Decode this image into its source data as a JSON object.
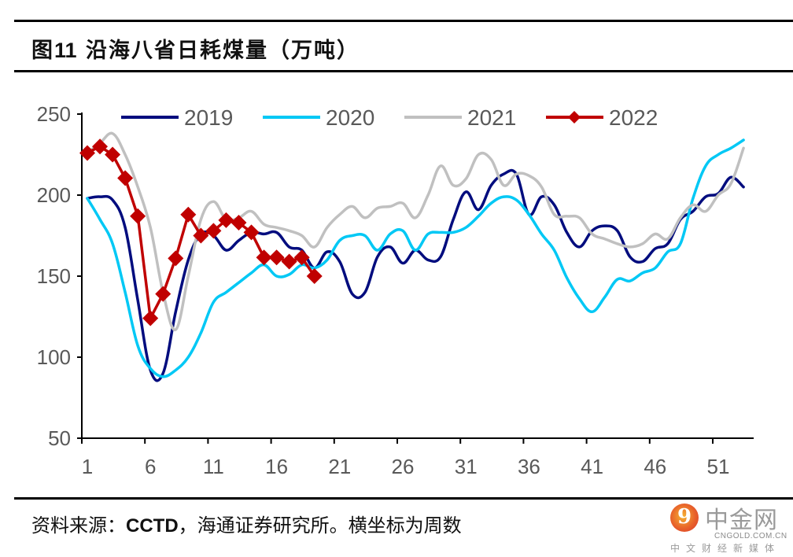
{
  "header": {
    "figure_label": "图",
    "figure_number": "11",
    "title": "沿海八省日耗煤量（万吨）"
  },
  "footer": {
    "source_prefix": "资料来源：",
    "source_bold": "CCTD",
    "source_suffix": "，海通证券研究所。横坐标为周数"
  },
  "watermark": {
    "brand": "中金网",
    "domain": "CNGOLD.COM.CN",
    "tagline": "中文财经新媒体",
    "icon": "cngold-logo-icon"
  },
  "chart_data": {
    "type": "line",
    "title": "沿海八省日耗煤量（万吨）",
    "xlabel": "周数",
    "ylabel": "万吨",
    "ylim": [
      50,
      250
    ],
    "xlim": [
      1,
      53
    ],
    "yticks": [
      50,
      100,
      150,
      200,
      250
    ],
    "xticks": [
      1,
      6,
      11,
      16,
      21,
      26,
      31,
      36,
      41,
      46,
      51
    ],
    "grid": false,
    "legend": "top",
    "series": [
      {
        "name": "2019",
        "color": "#000C7E",
        "marker": "none",
        "x": [
          1,
          2,
          3,
          4,
          5,
          6,
          7,
          8,
          9,
          10,
          11,
          12,
          13,
          14,
          15,
          16,
          17,
          18,
          19,
          20,
          21,
          22,
          23,
          24,
          25,
          26,
          27,
          28,
          29,
          30,
          31,
          32,
          33,
          34,
          35,
          36,
          37,
          38,
          39,
          40,
          41,
          42,
          43,
          44,
          45,
          46,
          47,
          48,
          49,
          50,
          51,
          52,
          53
        ],
        "values": [
          198,
          199,
          197,
          180,
          135,
          92,
          90,
          128,
          160,
          176,
          175,
          166,
          172,
          177,
          176,
          177,
          168,
          166,
          155,
          165,
          159,
          139,
          140,
          162,
          168,
          158,
          166,
          160,
          162,
          185,
          202,
          191,
          206,
          213,
          213,
          188,
          199,
          194,
          177,
          168,
          178,
          181,
          178,
          162,
          159,
          167,
          170,
          185,
          190,
          199,
          201,
          211,
          205
        ]
      },
      {
        "name": "2020",
        "color": "#00C8F5",
        "marker": "none",
        "x": [
          1,
          2,
          3,
          4,
          5,
          6,
          7,
          8,
          9,
          10,
          11,
          12,
          13,
          14,
          15,
          16,
          17,
          18,
          19,
          20,
          21,
          22,
          23,
          24,
          25,
          26,
          27,
          28,
          29,
          30,
          31,
          32,
          33,
          34,
          35,
          36,
          37,
          38,
          39,
          40,
          41,
          42,
          43,
          44,
          45,
          46,
          47,
          48,
          49,
          50,
          51,
          52,
          53
        ],
        "values": [
          198,
          185,
          170,
          140,
          107,
          93,
          88,
          92,
          100,
          115,
          134,
          140,
          146,
          152,
          157,
          150,
          151,
          157,
          155,
          160,
          172,
          175,
          175,
          166,
          176,
          178,
          166,
          176,
          177,
          177,
          180,
          187,
          195,
          199,
          197,
          188,
          176,
          166,
          149,
          136,
          128,
          137,
          148,
          147,
          152,
          155,
          165,
          170,
          198,
          218,
          225,
          229,
          234
        ]
      },
      {
        "name": "2021",
        "color": "#C0C0C0",
        "marker": "none",
        "x": [
          1,
          2,
          3,
          4,
          5,
          6,
          7,
          8,
          9,
          10,
          11,
          12,
          13,
          14,
          15,
          16,
          17,
          18,
          19,
          20,
          21,
          22,
          23,
          24,
          25,
          26,
          27,
          28,
          29,
          30,
          31,
          32,
          33,
          34,
          35,
          36,
          37,
          38,
          39,
          40,
          41,
          42,
          43,
          44,
          45,
          46,
          47,
          48,
          49,
          50,
          51,
          52,
          53
        ],
        "values": [
          226,
          232,
          238,
          225,
          205,
          180,
          140,
          117,
          150,
          185,
          196,
          185,
          186,
          190,
          182,
          180,
          178,
          175,
          168,
          180,
          188,
          193,
          186,
          192,
          193,
          195,
          186,
          200,
          218,
          206,
          210,
          225,
          222,
          206,
          213,
          212,
          205,
          188,
          187,
          186,
          176,
          173,
          170,
          168,
          170,
          176,
          173,
          186,
          194,
          190,
          200,
          207,
          229
        ]
      },
      {
        "name": "2022",
        "color": "#C00000",
        "marker": "diamond",
        "x": [
          1,
          2,
          3,
          4,
          5,
          6,
          7,
          8,
          9,
          10,
          11,
          12,
          13,
          14,
          15,
          16,
          17,
          18,
          19
        ],
        "values": [
          226,
          230,
          225,
          210.5,
          187,
          124,
          139,
          161,
          188,
          175,
          178,
          184.5,
          183,
          177,
          161.5,
          161.5,
          159,
          161.5,
          150
        ]
      }
    ]
  }
}
